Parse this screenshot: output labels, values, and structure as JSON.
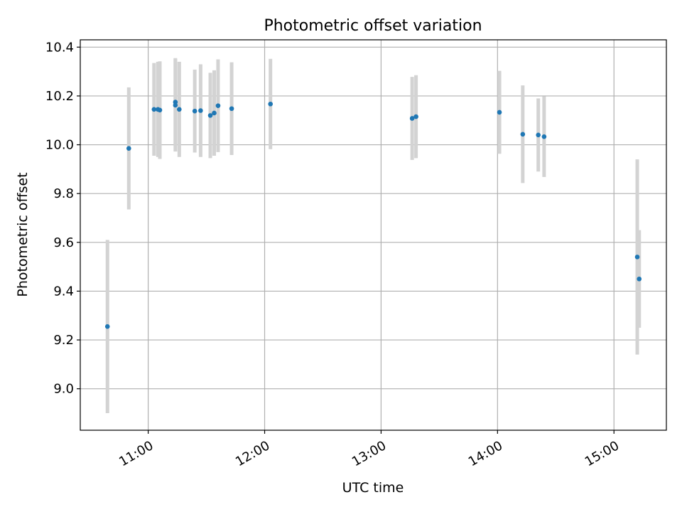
{
  "chart_data": {
    "type": "scatter",
    "title": "Photometric offset variation",
    "xlabel": "UTC time",
    "ylabel": "Photometric offset",
    "x_ticks": [
      "11:00",
      "12:00",
      "13:00",
      "14:00",
      "15:00"
    ],
    "y_ticks": [
      "9.0",
      "9.2",
      "9.4",
      "9.6",
      "9.8",
      "10.0",
      "10.2",
      "10.4"
    ],
    "xlim": [
      "10:25",
      "15:27"
    ],
    "ylim": [
      8.83,
      10.43
    ],
    "grid": true,
    "legend": "none",
    "colors": {
      "point": "#1f77b4",
      "errorbar": "#d3d3d3",
      "grid": "#b0b0b0"
    },
    "series": [
      {
        "x": [
          "10:39",
          "10:50",
          "11:03",
          "11:05",
          "11:06",
          "11:14",
          "11:14",
          "11:16",
          "11:24",
          "11:27",
          "11:32",
          "11:34",
          "11:36",
          "11:43",
          "12:03",
          "13:16",
          "13:18",
          "14:01",
          "14:13",
          "14:21",
          "14:24",
          "15:12",
          "15:13"
        ],
        "y": [
          9.255,
          9.985,
          10.145,
          10.145,
          10.142,
          10.175,
          10.162,
          10.145,
          10.138,
          10.14,
          10.12,
          10.13,
          10.16,
          10.148,
          10.167,
          10.108,
          10.115,
          10.133,
          10.043,
          10.04,
          10.033,
          9.54,
          9.45
        ],
        "err": [
          0.355,
          0.25,
          0.19,
          0.195,
          0.2,
          0.18,
          0.19,
          0.195,
          0.17,
          0.19,
          0.175,
          0.175,
          0.19,
          0.19,
          0.185,
          0.17,
          0.17,
          0.17,
          0.2,
          0.15,
          0.165,
          0.4,
          0.2
        ]
      }
    ]
  }
}
